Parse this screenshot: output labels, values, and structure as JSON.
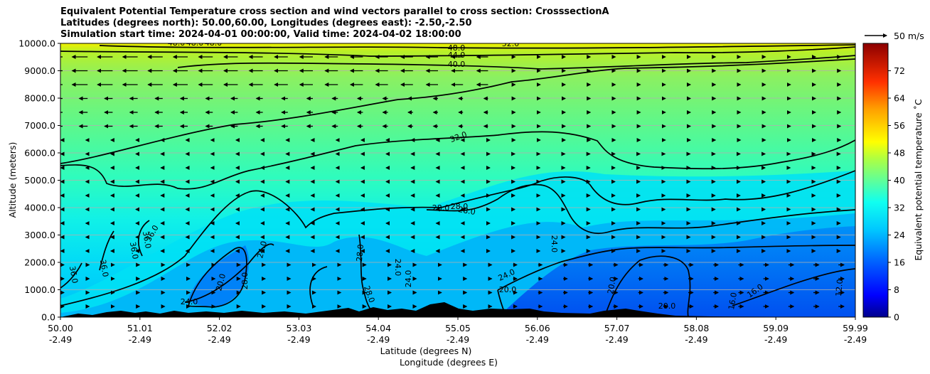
{
  "chart_data": {
    "type": "contourf",
    "title_lines": [
      "Equivalent Potential Temperature cross section and wind vectors parallel to cross section: CrosssectionA",
      "Latitudes (degrees north): 50.00,60.00, Longitudes (degrees east): -2.50,-2.50",
      "Simulation start time: 2024-04-01 00:00:00, Valid time: 2024-04-02 18:00:00"
    ],
    "ylabel": "Altitude (meters)",
    "xlabel_line1": "Latitude (degrees N)",
    "xlabel_line2": "Longitude (degrees E)",
    "ylim": [
      0,
      10000
    ],
    "y_ticks": [
      "0.0",
      "1000.0",
      "2000.0",
      "3000.0",
      "4000.0",
      "5000.0",
      "6000.0",
      "7000.0",
      "8000.0",
      "9000.0",
      "10000.0"
    ],
    "x_ticks": [
      {
        "lat": "50.00",
        "lon": "-2.49"
      },
      {
        "lat": "51.01",
        "lon": "-2.49"
      },
      {
        "lat": "52.02",
        "lon": "-2.49"
      },
      {
        "lat": "53.03",
        "lon": "-2.49"
      },
      {
        "lat": "54.04",
        "lon": "-2.49"
      },
      {
        "lat": "55.05",
        "lon": "-2.49"
      },
      {
        "lat": "56.06",
        "lon": "-2.49"
      },
      {
        "lat": "57.07",
        "lon": "-2.49"
      },
      {
        "lat": "58.08",
        "lon": "-2.49"
      },
      {
        "lat": "59.09",
        "lon": "-2.49"
      },
      {
        "lat": "59.99",
        "lon": "-2.49"
      }
    ],
    "colorbar": {
      "label": "Equivalent potential temperature ˚C",
      "range": [
        0,
        80
      ],
      "ticks": [
        "0",
        "8",
        "16",
        "24",
        "32",
        "40",
        "48",
        "56",
        "64",
        "72"
      ]
    },
    "quiver_key": {
      "label": "50 m/s"
    },
    "contour_labels": [
      "48.0",
      "44.0",
      "40.0",
      "52.0",
      "48.0",
      "48.0",
      "48.0",
      "32.0",
      "28.0",
      "28.0",
      "28.0",
      "36.0",
      "36.0",
      "36.0",
      "36.0",
      "36.0",
      "24.0",
      "24.0",
      "20.0",
      "28.0",
      "28.0",
      "28.0",
      "24.0",
      "24.0",
      "24.0",
      "24.0",
      "20.0",
      "20.0",
      "20.0",
      "16.0",
      "16.0",
      "12.0"
    ]
  }
}
